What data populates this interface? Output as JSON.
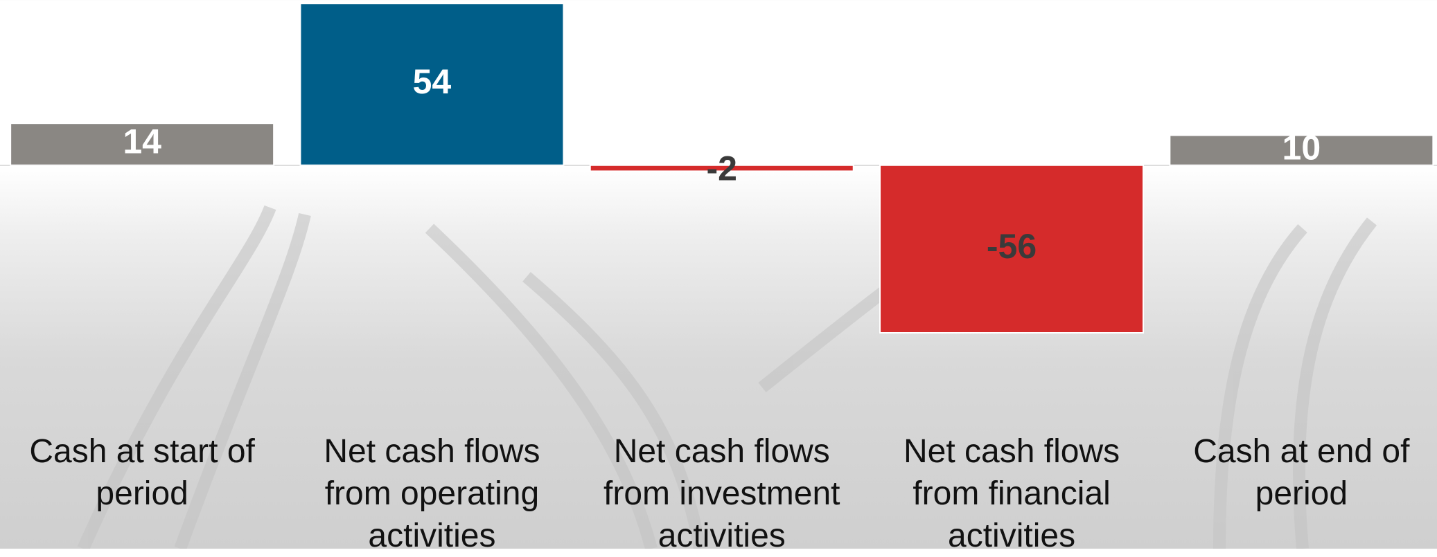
{
  "chart_data": {
    "type": "bar",
    "categories": [
      "Cash at start of period",
      "Net cash flows from operating activities",
      "Net cash flows from investment activities",
      "Net cash flows from financial activities",
      "Cash at end of period"
    ],
    "values": [
      14,
      54,
      -2,
      -56,
      10
    ],
    "colors": [
      "#8a8783",
      "#005e89",
      "#d52b2b",
      "#d52b2b",
      "#8a8783"
    ],
    "label_colors": [
      "#ffffff",
      "#ffffff",
      "#3a3a3a",
      "#3a3a3a",
      "#ffffff"
    ],
    "ylim": [
      -56,
      54.5
    ]
  }
}
